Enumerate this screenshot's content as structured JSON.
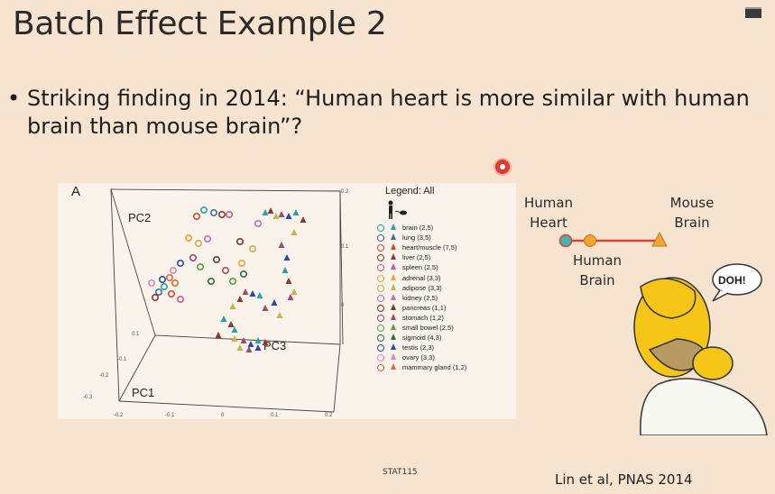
{
  "slide": {
    "title": "Batch Effect Example 2",
    "bullet_dot": "•",
    "bullet": "Striking finding in 2014: “Human heart is more similar with human brain than mouse brain”?",
    "footer_center": "STAT115",
    "footer_right": "Lin et al, PNAS 2014"
  },
  "figure": {
    "panel_letter": "A",
    "axis_labels": {
      "pc1": "PC1",
      "pc2": "PC2",
      "pc3": "PC3"
    },
    "legend_title": "Legend: All",
    "legend": [
      {
        "label": "brain (2,5)",
        "color": "#27a3a3"
      },
      {
        "label": "lung (3,5)",
        "color": "#3f6fa8"
      },
      {
        "label": "heart/muscle (7,5)",
        "color": "#d24a2a"
      },
      {
        "label": "liver (2,5)",
        "color": "#8a3a2a"
      },
      {
        "label": "spleen (2,5)",
        "color": "#c65a9a"
      },
      {
        "label": "adrenal (3,3)",
        "color": "#f0a431"
      },
      {
        "label": "adipose (3,3)",
        "color": "#c2b54a"
      },
      {
        "label": "kidney (2,5)",
        "color": "#b870c5"
      },
      {
        "label": "pancreas (1,1)",
        "color": "#6b3a2a"
      },
      {
        "label": "stomach (1,2)",
        "color": "#a04a6a"
      },
      {
        "label": "small bowel (2,5)",
        "color": "#5aa23a"
      },
      {
        "label": "sigmoid (4,3)",
        "color": "#2f6f3f"
      },
      {
        "label": "testis (2,3)",
        "color": "#2a4a9a"
      },
      {
        "label": "ovary (3,3)",
        "color": "#e08ab5"
      },
      {
        "label": "mammary gland (1,2)",
        "color": "#d96a3a"
      }
    ]
  },
  "diagram": {
    "human_heart": "Human Heart",
    "human_brain": "Human Brain",
    "mouse_brain": "Mouse Brain",
    "doh": "DOH!"
  },
  "colors": {
    "background": "#f6e4d0",
    "line": "#d8452f",
    "heart_dot": "#42b3b3",
    "brain_dot": "#f0a431",
    "mouse_tri": "#f0a431"
  }
}
